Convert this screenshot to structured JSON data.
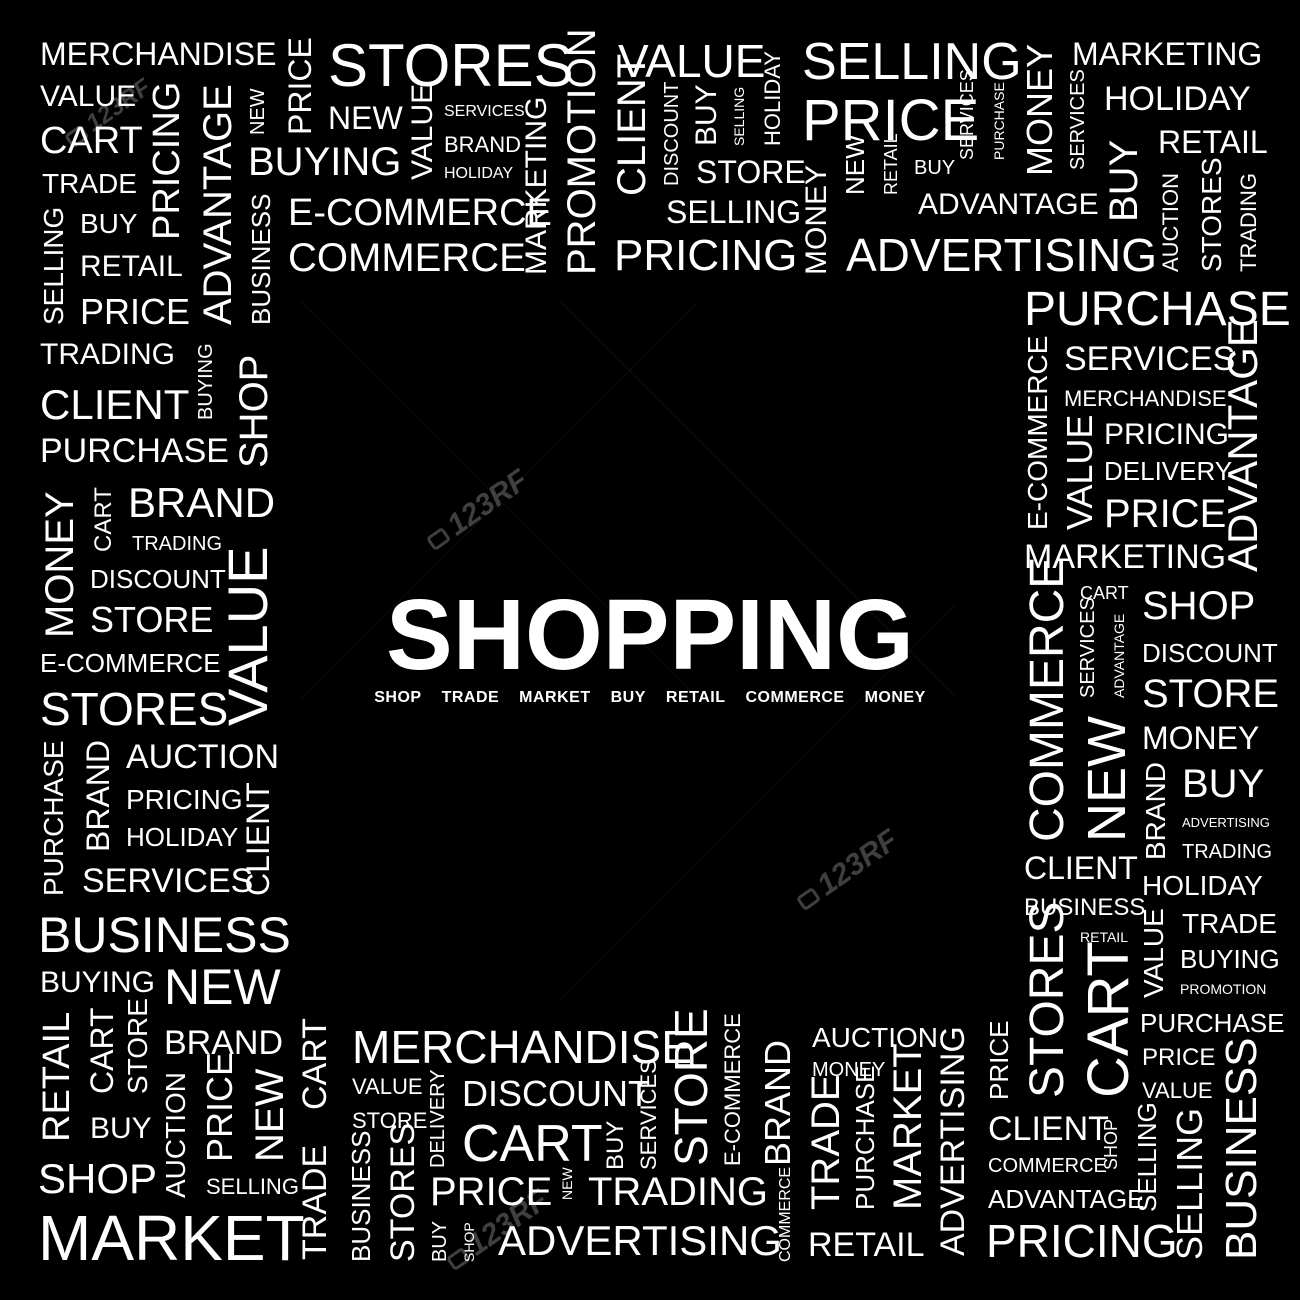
{
  "title": "SHOPPING",
  "subtitle": [
    "SHOP",
    "TRADE",
    "MARKET",
    "BUY",
    "RETAIL",
    "COMMERCE",
    "MONEY"
  ],
  "watermark_text": "123RF",
  "colors": {
    "background": "#000000",
    "text": "#ffffff",
    "watermark": "#8c8c8c"
  },
  "words": {
    "t01": "MERCHANDISE",
    "t02": "VALUE",
    "t03": "CART",
    "t04": "TRADE",
    "t05": "BUY",
    "t06": "RETAIL",
    "t07": "PRICE",
    "t08": "TRADING",
    "t09": "CLIENT",
    "t10": "PURCHASE",
    "t11": "SELLING",
    "t12": "PRICING",
    "t13": "ADVANTAGE",
    "t14": "NEW",
    "t15": "BUSINESS",
    "t16": "PRICE",
    "t17": "BUYING",
    "t18": "STORES",
    "t19": "NEW",
    "t20": "VALUE",
    "t21": "E-COMMERCE",
    "t22": "COMMERCE",
    "t23": "SERVICES",
    "t24": "BRAND",
    "t25": "HOLIDAY",
    "t26": "MARKETING",
    "t27": "PROMOTION",
    "t28": "CLIENT",
    "t29": "VALUE",
    "t30": "DISCOUNT",
    "t31": "BUY",
    "t32": "SELLING",
    "t33": "HOLIDAY",
    "t34": "STORE",
    "t35": "SELLING",
    "t36": "PRICING",
    "t37": "SELLING",
    "t38": "PRICE",
    "t39": "MONEY",
    "t40": "NEW",
    "t41": "RETAIL",
    "t42": "BUY",
    "t43": "SERVICES",
    "t44": "PURCHASE",
    "t45": "MONEY",
    "t46": "ADVANTAGE",
    "t47": "ADVERTISING",
    "t48": "MARKETING",
    "t49": "HOLIDAY",
    "t50": "SERVICES",
    "t51": "BUY",
    "t52": "RETAIL",
    "t53": "AUCTION",
    "t54": "STORES",
    "t55": "TRADING",
    "l01": "BUYING",
    "l02": "SHOP",
    "l03": "BRAND",
    "l04": "MONEY",
    "l05": "CART",
    "l06": "TRADING",
    "l07": "DISCOUNT",
    "l08": "STORE",
    "l09": "VALUE",
    "l10": "E-COMMERCE",
    "l11": "STORES",
    "l12": "AUCTION",
    "l13": "PURCHASE",
    "l14": "BRAND",
    "l15": "PRICING",
    "l16": "HOLIDAY",
    "l17": "CLIENT",
    "l18": "SERVICES",
    "l19": "BUSINESS",
    "l20": "BUYING",
    "l21": "NEW",
    "r01": "PURCHASE",
    "r02": "SERVICES",
    "r03": "E-COMMERCE",
    "r04": "MERCHANDISE",
    "r05": "VALUE",
    "r06": "PRICING",
    "r07": "DELIVERY",
    "r08": "ADVANTAGE",
    "r09": "PRICE",
    "r10": "MARKETING",
    "r11": "COMMERCE",
    "r12": "CART",
    "r13": "SERVICES",
    "r14": "ADVANTAGE",
    "r15": "SHOP",
    "r16": "DISCOUNT",
    "r17": "STORE",
    "r18": "NEW",
    "r19": "MONEY",
    "r20": "BRAND",
    "r21": "BUY",
    "r22": "ADVERTISING",
    "r23": "TRADING",
    "r24": "CLIENT",
    "r25": "HOLIDAY",
    "r26": "BUSINESS",
    "r27": "RETAIL",
    "r28": "TRADE",
    "r29": "VALUE",
    "r30": "BUYING",
    "r31": "PROMOTION",
    "r32": "STORES",
    "r33": "CART",
    "b01": "RETAIL",
    "b02": "CART",
    "b03": "STORE",
    "b04": "BRAND",
    "b05": "BUY",
    "b06": "AUCTION",
    "b07": "PRICE",
    "b08": "NEW",
    "b09": "SHOP",
    "b10": "SELLING",
    "b11": "MARKET",
    "b12": "TRADE",
    "b13": "CART",
    "b14": "MERCHANDISE",
    "b15": "VALUE",
    "b16": "STORE",
    "b17": "DELIVERY",
    "b18": "DISCOUNT",
    "b19": "BUSINESS",
    "b20": "STORES",
    "b21": "CART",
    "b22": "BUY",
    "b23": "SERVICES",
    "b24": "STORE",
    "b25": "E-COMMERCE",
    "b26": "BRAND",
    "b27": "PRICE",
    "b28": "NEW",
    "b29": "TRADING",
    "b30": "BUY",
    "b31": "SHOP",
    "b32": "ADVERTISING",
    "b33": "COMMERCE",
    "b34": "AUCTION",
    "b35": "MONEY",
    "b36": "TRADE",
    "b37": "PURCHASE",
    "b38": "MARKET",
    "b39": "RETAIL",
    "b40": "ADVERTISING",
    "b41": "PRICE",
    "b42": "CLIENT",
    "b43": "COMMERCE",
    "b44": "SHOP",
    "b45": "ADVANTAGE",
    "b46": "PRICING",
    "b47": "SELLING",
    "b48": "PURCHASE",
    "b49": "PRICE",
    "b50": "VALUE",
    "b51": "SELLING",
    "b52": "BUSINESS"
  }
}
